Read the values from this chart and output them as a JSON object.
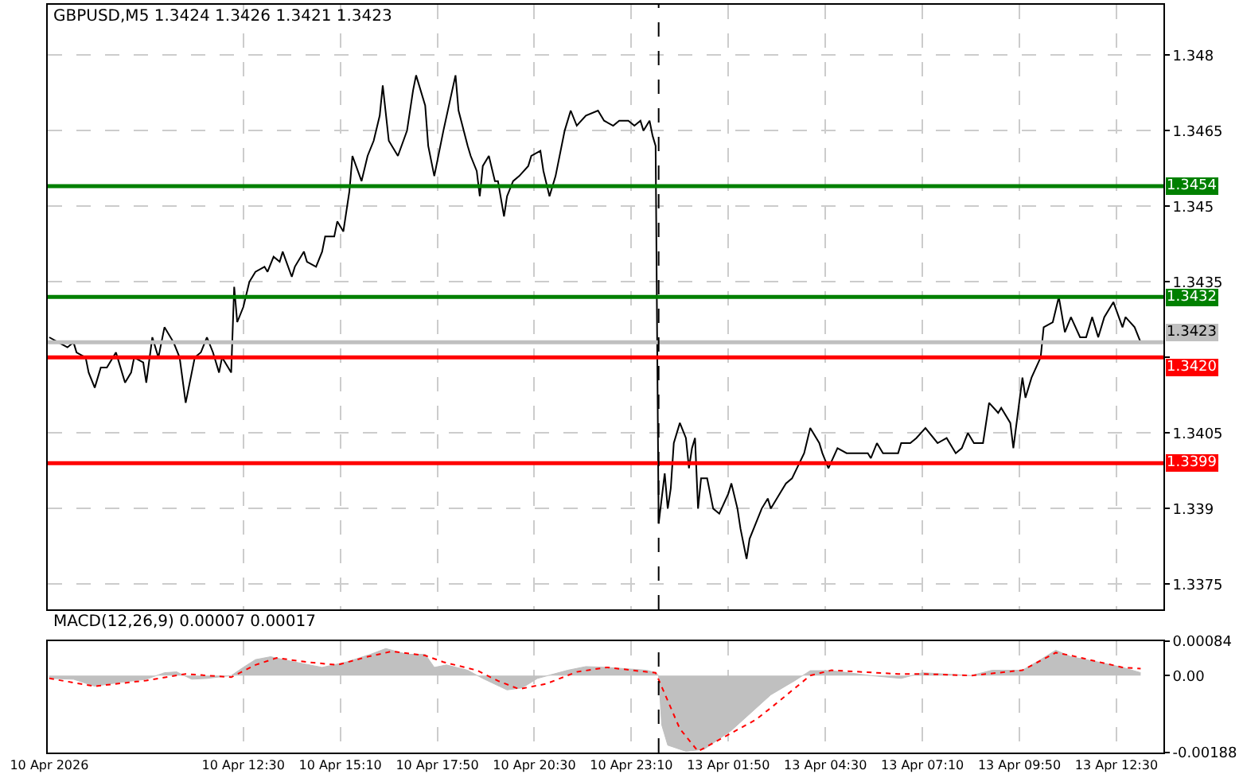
{
  "chart_data": [
    {
      "type": "line",
      "title": "GBPUSD,M5 1.3424 1.3426 1.3421 1.3423",
      "categories": [
        null,
        null,
        null,
        null,
        null,
        null,
        null,
        null,
        null,
        null,
        null,
        null,
        null,
        null,
        null,
        null,
        null,
        null,
        null,
        null,
        null,
        null,
        null,
        null,
        null,
        null,
        null,
        null,
        null,
        null,
        null,
        null,
        null,
        null,
        null,
        null,
        null,
        null,
        null,
        null,
        null,
        null,
        null,
        null,
        null,
        null,
        null,
        null,
        null,
        null,
        null,
        null,
        null,
        null,
        null,
        null,
        null,
        null,
        null,
        null,
        null,
        null,
        null,
        null,
        null,
        null,
        null,
        null,
        null,
        null,
        null,
        null,
        null,
        null,
        null,
        null,
        null,
        null,
        null,
        null,
        null,
        null,
        null,
        null,
        null,
        null,
        null,
        null,
        null,
        null,
        null,
        null,
        null,
        null,
        null,
        null,
        null,
        null,
        null,
        null,
        null,
        null,
        null,
        null,
        null,
        null,
        null,
        null,
        null,
        null,
        null,
        null,
        null,
        null,
        null,
        null,
        null,
        null,
        null,
        null,
        null,
        null,
        null,
        null,
        null,
        null,
        null,
        null,
        null,
        null,
        null,
        null,
        null,
        null,
        null,
        null,
        null,
        null,
        null,
        null,
        null,
        null,
        null,
        null,
        null,
        null,
        null,
        null,
        null,
        null,
        null,
        null,
        null,
        null,
        null,
        null,
        null,
        null,
        null,
        null,
        null,
        null,
        null,
        null,
        null,
        null,
        null,
        null,
        null,
        null,
        null,
        null,
        null,
        null,
        null,
        null,
        null,
        null,
        null,
        null,
        null,
        null,
        null,
        null,
        null,
        null,
        null,
        null,
        null,
        null,
        null,
        null,
        null,
        null,
        null,
        null,
        null,
        null,
        null,
        null,
        null,
        null,
        null,
        null,
        null,
        null,
        null,
        null,
        null,
        null,
        null,
        null,
        null,
        null,
        null,
        null,
        null,
        null,
        null,
        null,
        null,
        null,
        null,
        null,
        null,
        null,
        null,
        null,
        null,
        null,
        null,
        null,
        null,
        null,
        null,
        null,
        null,
        null,
        null,
        null,
        null,
        null,
        null,
        null,
        null,
        null,
        null,
        null,
        null,
        null,
        null,
        null,
        null,
        null,
        null,
        null,
        null,
        null,
        null,
        null,
        null,
        null,
        null,
        null,
        null,
        null,
        null,
        null,
        null,
        null,
        null,
        null,
        null,
        null,
        null,
        null,
        null,
        null,
        null,
        null,
        null,
        null,
        null,
        null,
        null,
        null,
        null,
        null,
        null,
        null,
        null,
        null,
        null,
        null,
        null,
        null,
        null,
        null,
        null,
        null,
        null,
        null,
        null,
        null,
        null,
        null,
        null,
        null,
        null,
        null,
        null,
        null,
        null,
        null,
        null,
        null,
        null,
        null,
        null,
        null,
        null,
        null,
        null,
        null,
        null,
        null,
        null,
        null,
        null,
        null,
        null,
        null,
        null,
        null,
        null,
        null,
        null,
        null,
        null,
        null,
        null,
        null,
        null,
        null,
        null,
        null,
        null,
        null,
        null,
        null,
        null,
        null,
        null,
        null,
        null,
        null,
        null,
        null,
        null,
        null,
        null,
        null,
        null,
        null,
        null,
        null,
        null,
        null
      ],
      "series": [
        {
          "color": "#000000",
          "values": [
            1.3424,
            null,
            null,
            1.3423,
            null,
            null,
            1.3422,
            null,
            1.3423,
            1.3421,
            null,
            null,
            1.342,
            1.3417,
            null,
            1.3414,
            null,
            1.3418,
            null,
            1.3418,
            null,
            null,
            1.3421,
            1.3419,
            null,
            1.3415,
            null,
            1.3417,
            1.342,
            null,
            null,
            1.3419,
            1.3415,
            null,
            1.3424,
            null,
            1.342,
            null,
            1.3426,
            null,
            null,
            1.3423,
            null,
            1.342,
            null,
            1.3411,
            null,
            1.3417,
            1.342,
            null,
            1.3421,
            null,
            1.3424,
            null,
            1.3421,
            null,
            1.3417,
            1.342,
            null,
            null,
            1.3417,
            1.3434,
            1.3427,
            null,
            1.343,
            null,
            1.3435,
            null,
            1.3437,
            null,
            null,
            1.3438,
            1.3437,
            null,
            1.344,
            null,
            1.3439,
            1.3441,
            null,
            null,
            1.3436,
            1.3438,
            null,
            null,
            1.3441,
            1.3439,
            null,
            null,
            1.3438,
            null,
            1.3441,
            1.3444,
            null,
            null,
            1.3444,
            1.3447,
            null,
            1.3445,
            null,
            1.3453,
            1.346,
            null,
            null,
            1.3455,
            null,
            1.346,
            null,
            1.3463,
            null,
            1.3468,
            1.3474,
            null,
            1.3463,
            null,
            null,
            1.346,
            null,
            null,
            1.3465,
            null,
            1.3473,
            1.3476,
            null,
            null,
            1.347,
            1.3462,
            null,
            1.3456,
            null,
            null,
            1.3465,
            null,
            null,
            null,
            1.3476,
            1.3469,
            null,
            null,
            1.3462,
            1.346,
            null,
            1.3457,
            1.3452,
            1.3458,
            null,
            1.346,
            null,
            1.3455,
            1.3455,
            null,
            1.3448,
            1.3452,
            null,
            1.3455,
            null,
            1.3456,
            null,
            null,
            1.3458,
            1.346,
            null,
            null,
            1.3461,
            1.3457,
            null,
            1.3452,
            null,
            1.3456,
            null,
            null,
            1.3465,
            null,
            1.3469,
            null,
            1.3466,
            null,
            null,
            1.3468,
            null,
            null,
            null,
            1.3469,
            null,
            1.3467,
            null,
            null,
            1.3466,
            null,
            1.3467,
            null,
            null,
            1.3467,
            null,
            1.3466,
            null,
            1.3467,
            1.3465,
            null,
            1.3467,
            1.3464,
            1.3462,
            1.3387,
            null,
            1.3397,
            1.339,
            1.3394,
            1.3403,
            null,
            1.3407,
            null,
            1.3404,
            1.3398,
            1.3402,
            1.3404,
            1.339,
            1.3396,
            null,
            1.3396,
            null,
            1.339,
            null,
            1.3389,
            null,
            null,
            1.3393,
            1.3395,
            null,
            1.339,
            1.3386,
            null,
            1.338,
            1.3384,
            null,
            1.3387,
            null,
            1.339,
            null,
            1.3392,
            1.339,
            null,
            null,
            1.3393,
            null,
            1.3395,
            null,
            1.3396,
            null,
            null,
            null,
            1.3401,
            null,
            1.3406,
            null,
            null,
            1.3403,
            1.3401,
            null,
            1.3398,
            null,
            null,
            1.3402,
            null,
            null,
            1.3401,
            null,
            null,
            1.3401,
            null,
            null,
            null,
            1.3401,
            1.34,
            null,
            1.3403,
            null,
            1.3401,
            null,
            null,
            null,
            null,
            1.3401,
            1.3403,
            null,
            null,
            1.3403,
            null,
            1.3404,
            null,
            null,
            1.3406,
            null,
            null,
            null,
            1.3403,
            null,
            null,
            1.3404,
            null,
            null,
            1.3401,
            null,
            1.3402,
            null,
            1.3405,
            null,
            1.3403,
            null,
            null,
            1.3403,
            null,
            1.3411,
            null,
            null,
            1.3409,
            1.341,
            null,
            null,
            1.3407,
            1.3402,
            null,
            null,
            1.3416,
            1.3412,
            null,
            1.3416,
            null,
            null,
            1.342,
            1.3426,
            null,
            null,
            1.3427,
            null,
            1.3432,
            null,
            1.3425,
            null,
            1.3428,
            null,
            null,
            1.3424,
            null,
            1.3424,
            null,
            1.3428,
            null,
            1.3424,
            null,
            1.3428,
            null,
            null,
            1.3431,
            null,
            null,
            1.3426,
            1.3428,
            null,
            null,
            1.3426,
            null,
            1.3423,
            null,
            null,
            null,
            null,
            null,
            null,
            null
          ]
        }
      ],
      "ylim": [
        1.337,
        1.349
      ],
      "yticks": [
        1.348,
        1.3465,
        1.345,
        1.3435,
        {
          "value": 1.342,
          "label": null
        },
        1.3405,
        1.339,
        1.3375
      ],
      "tick_labels": "y",
      "grid": true,
      "marker": "none",
      "line_style": "solid",
      "ref_lines": [
        {
          "axis": "y",
          "value": 1.3454,
          "label": "1.3454",
          "color": "#008000"
        },
        {
          "axis": "y",
          "value": 1.3432,
          "label": "1.3432",
          "color": "#008000"
        },
        {
          "axis": "y",
          "value": 1.3423,
          "label": "1.3423",
          "color": "#c0c0c0"
        },
        {
          "axis": "y",
          "value": 1.342,
          "label": "1.3420",
          "color": "#ff0000"
        },
        {
          "axis": "y",
          "value": 1.3399,
          "label": "1.3399",
          "color": "#ff0000"
        }
      ]
    },
    {
      "type": "area",
      "title": "MACD(12,26,9) 0.00007 0.00017",
      "categories": [
        "10 Apr 2026",
        null,
        null,
        null,
        null,
        null,
        null,
        null,
        null,
        null,
        null,
        null,
        null,
        null,
        null,
        null,
        null,
        null,
        null,
        null,
        null,
        null,
        null,
        null,
        null,
        null,
        null,
        null,
        null,
        null,
        null,
        null,
        null,
        null,
        null,
        null,
        null,
        null,
        null,
        null,
        null,
        null,
        null,
        null,
        null,
        null,
        null,
        null,
        null,
        null,
        null,
        null,
        null,
        null,
        null,
        null,
        null,
        null,
        null,
        null,
        null,
        null,
        null,
        null,
        "10 Apr 12:30",
        null,
        null,
        null,
        null,
        null,
        null,
        null,
        null,
        null,
        null,
        null,
        null,
        null,
        null,
        null,
        null,
        null,
        null,
        null,
        null,
        null,
        null,
        null,
        null,
        null,
        null,
        null,
        null,
        null,
        null,
        null,
        "10 Apr 15:10",
        null,
        null,
        null,
        null,
        null,
        null,
        null,
        null,
        null,
        null,
        null,
        null,
        null,
        null,
        null,
        null,
        null,
        null,
        null,
        null,
        null,
        null,
        null,
        null,
        null,
        null,
        null,
        null,
        null,
        null,
        null,
        "10 Apr 17:50",
        null,
        null,
        null,
        null,
        null,
        null,
        null,
        null,
        null,
        null,
        null,
        null,
        null,
        null,
        null,
        null,
        null,
        null,
        null,
        null,
        null,
        null,
        null,
        null,
        null,
        null,
        null,
        null,
        null,
        null,
        null,
        "10 Apr 20:30",
        null,
        null,
        null,
        null,
        null,
        null,
        null,
        null,
        null,
        null,
        null,
        null,
        null,
        null,
        null,
        null,
        null,
        null,
        null,
        null,
        null,
        null,
        null,
        null,
        null,
        null,
        null,
        null,
        null,
        null,
        null,
        "10 Apr 23:10",
        null,
        null,
        null,
        null,
        null,
        null,
        null,
        null,
        null,
        null,
        null,
        null,
        null,
        null,
        null,
        null,
        null,
        null,
        null,
        null,
        null,
        null,
        null,
        null,
        null,
        null,
        null,
        null,
        null,
        null,
        null,
        "13 Apr 01:50",
        null,
        null,
        null,
        null,
        null,
        null,
        null,
        null,
        null,
        null,
        null,
        null,
        null,
        null,
        null,
        null,
        null,
        null,
        null,
        null,
        null,
        null,
        null,
        null,
        null,
        null,
        null,
        null,
        null,
        null,
        null,
        "13 Apr 04:30",
        null,
        null,
        null,
        null,
        null,
        null,
        null,
        null,
        null,
        null,
        null,
        null,
        null,
        null,
        null,
        null,
        null,
        null,
        null,
        null,
        null,
        null,
        null,
        null,
        null,
        null,
        null,
        null,
        null,
        null,
        null,
        "13 Apr 07:10",
        null,
        null,
        null,
        null,
        null,
        null,
        null,
        null,
        null,
        null,
        null,
        null,
        null,
        null,
        null,
        null,
        null,
        null,
        null,
        null,
        null,
        null,
        null,
        null,
        null,
        null,
        null,
        null,
        null,
        null,
        null,
        "13 Apr 09:50",
        null,
        null,
        null,
        null,
        null,
        null,
        null,
        null,
        null,
        null,
        null,
        null,
        null,
        null,
        null,
        null,
        null,
        null,
        null,
        null,
        null,
        null,
        null,
        null,
        null,
        null,
        null,
        null,
        null,
        null,
        null,
        "13 Apr 12:30",
        null,
        null,
        null,
        null,
        null,
        null,
        null,
        null,
        null,
        null,
        null,
        null,
        null,
        null,
        null
      ],
      "series": [
        {
          "color": "#c0c0c0",
          "values": [
            -7e-05,
            null,
            null,
            null,
            null,
            null,
            null,
            null,
            -9e-05,
            null,
            null,
            null,
            null,
            null,
            null,
            -0.00026,
            null,
            null,
            null,
            null,
            null,
            null,
            null,
            -0.00017,
            null,
            null,
            null,
            null,
            null,
            null,
            null,
            null,
            -9e-05,
            null,
            null,
            null,
            null,
            null,
            7e-05,
            null,
            null,
            null,
            9e-05,
            null,
            null,
            null,
            null,
            -9e-05,
            null,
            null,
            null,
            null,
            -7e-05,
            null,
            null,
            null,
            null,
            null,
            null,
            null,
            0,
            null,
            null,
            null,
            0.0002,
            null,
            null,
            null,
            0.00039,
            null,
            null,
            null,
            null,
            0.00046,
            null,
            null,
            null,
            null,
            null,
            null,
            null,
            0.00033,
            null,
            null,
            null,
            null,
            null,
            null,
            null,
            null,
            0.0002,
            null,
            null,
            null,
            null,
            null,
            null,
            null,
            0.00033,
            null,
            null,
            null,
            null,
            null,
            null,
            null,
            0.00052,
            null,
            null,
            null,
            null,
            0.00066,
            null,
            null,
            null,
            null,
            null,
            null,
            0.00052,
            null,
            null,
            null,
            null,
            null,
            0.00052,
            null,
            null,
            0.0002,
            null,
            null,
            null,
            0.00026,
            null,
            null,
            null,
            null,
            null,
            null,
            0.00013,
            null,
            null,
            null,
            null,
            -7e-05,
            null,
            null,
            null,
            null,
            null,
            null,
            null,
            -0.00035,
            null,
            null,
            null,
            null,
            -0.0003,
            null,
            null,
            null,
            null,
            -7e-05,
            null,
            null,
            null,
            null,
            null,
            null,
            null,
            null,
            null,
            0.00013,
            null,
            null,
            null,
            null,
            null,
            0.00022,
            null,
            null,
            null,
            null,
            null,
            null,
            0.0002,
            null,
            null,
            null,
            null,
            null,
            null,
            null,
            null,
            null,
            null,
            null,
            null,
            0.00013,
            null,
            null,
            7e-05,
            0,
            -0.0012,
            null,
            -0.0017,
            null,
            null,
            null,
            null,
            null,
            -0.00185,
            null,
            null,
            null,
            null,
            null,
            -0.0018,
            null,
            null,
            null,
            null,
            null,
            null,
            null,
            null,
            -0.00134,
            null,
            null,
            null,
            null,
            null,
            null,
            null,
            null,
            null,
            null,
            null,
            null,
            -0.00047,
            null,
            null,
            null,
            null,
            null,
            null,
            null,
            -0.00012,
            null,
            null,
            null,
            null,
            0.00012,
            null,
            null,
            null,
            null,
            null,
            null,
            0.00012,
            null,
            null,
            null,
            null,
            null,
            null,
            null,
            null,
            null,
            null,
            null,
            null,
            0,
            null,
            null,
            null,
            null,
            null,
            null,
            null,
            null,
            null,
            -7e-05,
            null,
            null,
            null,
            null,
            null,
            null,
            7e-05,
            null,
            null,
            null,
            null,
            null,
            null,
            null,
            null,
            null,
            null,
            null,
            null,
            null,
            null,
            null,
            0,
            null,
            null,
            null,
            null,
            null,
            null,
            0.00013,
            null,
            null,
            null,
            null,
            null,
            null,
            null,
            null,
            null,
            0.00013,
            null,
            null,
            null,
            null,
            null,
            0.00039,
            null,
            null,
            null,
            null,
            0.00062,
            null,
            null,
            null,
            null,
            0.00046,
            null,
            null,
            null,
            null,
            null,
            null,
            null,
            null,
            0.00033,
            null,
            null,
            null,
            null,
            null,
            null,
            null,
            0.0002,
            null,
            null,
            null,
            null,
            null,
            7e-05,
            null,
            null,
            null,
            null,
            null,
            null,
            null
          ]
        },
        {
          "type": "line",
          "color": "#ff0000",
          "line_style": "dotted",
          "values": [
            -7e-05,
            null,
            null,
            null,
            null,
            null,
            null,
            null,
            null,
            null,
            null,
            null,
            null,
            null,
            null,
            -0.00026,
            null,
            null,
            null,
            null,
            null,
            null,
            null,
            null,
            null,
            null,
            null,
            null,
            null,
            null,
            null,
            null,
            -0.00012,
            null,
            null,
            null,
            null,
            null,
            null,
            null,
            null,
            null,
            null,
            null,
            null,
            4e-05,
            null,
            null,
            null,
            null,
            null,
            null,
            null,
            null,
            null,
            null,
            null,
            null,
            null,
            null,
            -4e-05,
            null,
            null,
            null,
            null,
            null,
            null,
            null,
            0.00026,
            null,
            null,
            null,
            null,
            null,
            null,
            0.00043,
            null,
            null,
            null,
            null,
            null,
            null,
            null,
            null,
            null,
            0.00033,
            null,
            null,
            null,
            null,
            null,
            null,
            null,
            null,
            null,
            0.00026,
            null,
            null,
            null,
            null,
            null,
            null,
            null,
            null,
            null,
            0.00046,
            null,
            null,
            null,
            null,
            null,
            null,
            null,
            0.00059,
            null,
            null,
            null,
            null,
            null,
            null,
            null,
            null,
            null,
            null,
            0.00049,
            null,
            null,
            null,
            null,
            null,
            0.00033,
            null,
            null,
            null,
            null,
            null,
            null,
            null,
            null,
            null,
            null,
            0.00013,
            null,
            null,
            null,
            null,
            null,
            null,
            -0.00013,
            null,
            null,
            null,
            null,
            null,
            null,
            -0.00033,
            null,
            null,
            null,
            null,
            null,
            null,
            null,
            null,
            -0.0002,
            null,
            null,
            null,
            null,
            null,
            null,
            null,
            null,
            null,
            9e-05,
            null,
            null,
            null,
            null,
            null,
            null,
            null,
            null,
            null,
            0.0002,
            null,
            null,
            null,
            null,
            null,
            null,
            null,
            null,
            null,
            null,
            null,
            null,
            9e-05,
            null,
            null,
            7e-05,
            null,
            null,
            null,
            null,
            null,
            null,
            null,
            -0.0013,
            null,
            null,
            null,
            null,
            null,
            -0.00185,
            null,
            null,
            null,
            null,
            null,
            null,
            null,
            null,
            null,
            null,
            null,
            null,
            null,
            null,
            null,
            null,
            null,
            null,
            -0.00108,
            null,
            null,
            null,
            null,
            -0.00079,
            null,
            null,
            null,
            null,
            null,
            null,
            null,
            null,
            null,
            null,
            null,
            null,
            0,
            null,
            null,
            null,
            null,
            null,
            null,
            0.00013,
            null,
            null,
            null,
            null,
            null,
            null,
            null,
            null,
            null,
            null,
            null,
            null,
            null,
            null,
            null,
            null,
            null,
            null,
            null,
            null,
            null,
            4e-05,
            null,
            null,
            null,
            null,
            null,
            null,
            null,
            4e-05,
            null,
            null,
            null,
            null,
            null,
            null,
            null,
            null,
            null,
            null,
            null,
            null,
            null,
            null,
            null,
            0,
            null,
            null,
            null,
            null,
            null,
            null,
            null,
            null,
            null,
            null,
            null,
            null,
            null,
            null,
            null,
            null,
            0.00013,
            null,
            null,
            null,
            null,
            null,
            null,
            null,
            null,
            null,
            null,
            0.00056,
            null,
            null,
            null,
            null,
            0.00049,
            null,
            null,
            null,
            null,
            null,
            null,
            null,
            null,
            null,
            null,
            null,
            null,
            null,
            null,
            null,
            null,
            0.0002,
            null,
            null,
            null,
            null,
            null,
            0.00017,
            null,
            null,
            null,
            null,
            null,
            null,
            null
          ]
        }
      ],
      "ylim": [
        -0.00188,
        0.00084
      ],
      "yticks": [
        0.00084,
        {
          "value": 0,
          "label": "0.00"
        },
        -0.00188
      ],
      "grid": "x",
      "marker": "none"
    }
  ]
}
